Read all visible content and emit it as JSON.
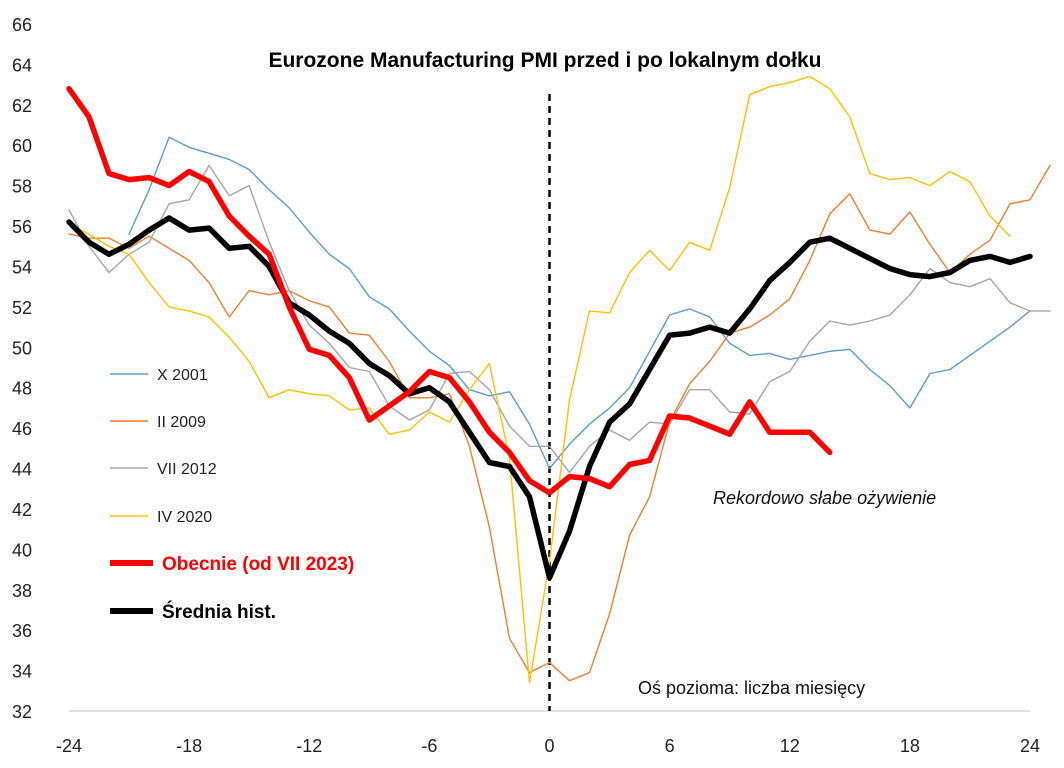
{
  "chart_data": {
    "type": "line",
    "title": "Eurozone Manufacturing PMI przed i po lokalnym dołku",
    "xlabel": "",
    "ylabel": "",
    "xlim": [
      -24,
      24
    ],
    "ylim": [
      32,
      66
    ],
    "x_ticks": [
      -24,
      -18,
      -12,
      -6,
      0,
      6,
      12,
      18,
      24
    ],
    "y_ticks": [
      32,
      34,
      36,
      38,
      40,
      42,
      44,
      46,
      48,
      50,
      52,
      54,
      56,
      58,
      60,
      62,
      64,
      66
    ],
    "grid": false,
    "vertical_marker_x": 0,
    "annotations": {
      "recovery": "Rekordowo słabe ożywienie",
      "axis_note": "Oś pozioma: liczba miesięcy"
    },
    "series": [
      {
        "name": "X 2001",
        "color": "#5B9BD5",
        "width": 1.4,
        "x_start": -21,
        "values": [
          55.6,
          57.8,
          60.4,
          59.9,
          59.6,
          59.3,
          58.8,
          57.8,
          56.9,
          55.7,
          54.6,
          53.9,
          52.5,
          51.9,
          50.8,
          49.8,
          49.1,
          47.9,
          47.6,
          47.8,
          46.2,
          44.0,
          45.2,
          46.2,
          47.0,
          48.0,
          49.8,
          51.6,
          51.9,
          51.5,
          50.2,
          49.6,
          49.7,
          49.4,
          49.6,
          49.8,
          49.9,
          48.9,
          48.1,
          47.0,
          48.7,
          48.9,
          49.6,
          50.3,
          51.0,
          51.8
        ]
      },
      {
        "name": "II 2009",
        "color": "#ED7D31",
        "width": 1.4,
        "x_start": -24,
        "values": [
          55.6,
          55.4,
          55.4,
          54.9,
          55.5,
          54.9,
          54.3,
          53.2,
          51.5,
          52.8,
          52.6,
          52.8,
          52.3,
          52.0,
          50.7,
          50.6,
          49.3,
          47.5,
          47.5,
          47.7,
          45.1,
          41.1,
          35.6,
          33.9,
          34.4,
          33.5,
          33.9,
          36.8,
          40.7,
          42.6,
          46.3,
          48.2,
          49.3,
          50.7,
          51.0,
          51.6,
          52.4,
          54.3,
          56.6,
          57.6,
          55.8,
          55.6,
          56.7,
          55.1,
          53.7,
          54.6,
          55.3,
          57.1,
          57.3,
          59.0
        ]
      },
      {
        "name": "VII 2012",
        "color": "#A5A5A5",
        "width": 1.4,
        "x_start": -24,
        "values": [
          56.8,
          55.0,
          53.7,
          54.6,
          55.2,
          57.1,
          57.3,
          59.0,
          57.5,
          58.0,
          55.2,
          52.8,
          51.1,
          50.2,
          49.0,
          48.8,
          47.1,
          46.4,
          46.9,
          48.7,
          48.8,
          47.9,
          46.1,
          45.1,
          45.1,
          43.8,
          45.1,
          45.9,
          45.4,
          46.3,
          46.2,
          47.9,
          47.9,
          46.8,
          46.7,
          48.3,
          48.8,
          50.3,
          51.3,
          51.1,
          51.3,
          51.6,
          52.6,
          53.9,
          53.2,
          53.0,
          53.4,
          52.2,
          51.8,
          51.8
        ]
      },
      {
        "name": "IV 2020",
        "color": "#FFC000",
        "width": 1.4,
        "x_start": -24,
        "values": [
          56.1,
          55.6,
          55.0,
          54.6,
          53.2,
          52.0,
          51.8,
          51.5,
          50.5,
          49.3,
          47.5,
          47.9,
          47.7,
          47.6,
          46.9,
          47.0,
          45.7,
          45.9,
          46.8,
          46.3,
          47.9,
          49.2,
          44.5,
          33.4,
          39.4,
          47.4,
          51.8,
          51.7,
          53.7,
          54.8,
          53.8,
          55.2,
          54.8,
          57.9,
          62.5,
          62.9,
          63.1,
          63.4,
          62.8,
          61.4,
          58.6,
          58.3,
          58.4,
          58.0,
          58.7,
          58.2,
          56.5,
          55.5
        ]
      },
      {
        "name": "Obecnie (od VII 2023)",
        "color": "#FF0000",
        "width": 5.5,
        "x_start": -24,
        "values": [
          62.8,
          61.4,
          58.6,
          58.3,
          58.4,
          58.0,
          58.7,
          58.2,
          56.5,
          55.5,
          54.6,
          52.0,
          49.9,
          49.6,
          48.5,
          46.4,
          47.1,
          47.8,
          48.8,
          48.5,
          47.3,
          45.8,
          44.8,
          43.4,
          42.8,
          43.6,
          43.5,
          43.1,
          44.2,
          44.4,
          46.6,
          46.5,
          46.1,
          45.7,
          47.3,
          45.8,
          45.8,
          45.8,
          44.8
        ]
      },
      {
        "name": "Średnia hist.",
        "color": "#000000",
        "width": 5.5,
        "x_start": -24,
        "values": [
          56.2,
          55.2,
          54.6,
          55.1,
          55.8,
          56.4,
          55.8,
          55.9,
          54.9,
          55.0,
          54.0,
          52.2,
          51.6,
          50.8,
          50.2,
          49.2,
          48.6,
          47.7,
          48.0,
          47.3,
          45.8,
          44.3,
          44.1,
          42.6,
          38.6,
          40.9,
          44.1,
          46.3,
          47.2,
          48.9,
          50.6,
          50.7,
          51.0,
          50.7,
          51.9,
          53.3,
          54.2,
          55.2,
          55.4,
          54.9,
          54.4,
          53.9,
          53.6,
          53.5,
          53.7,
          54.3,
          54.5,
          54.2,
          54.5
        ]
      }
    ]
  }
}
